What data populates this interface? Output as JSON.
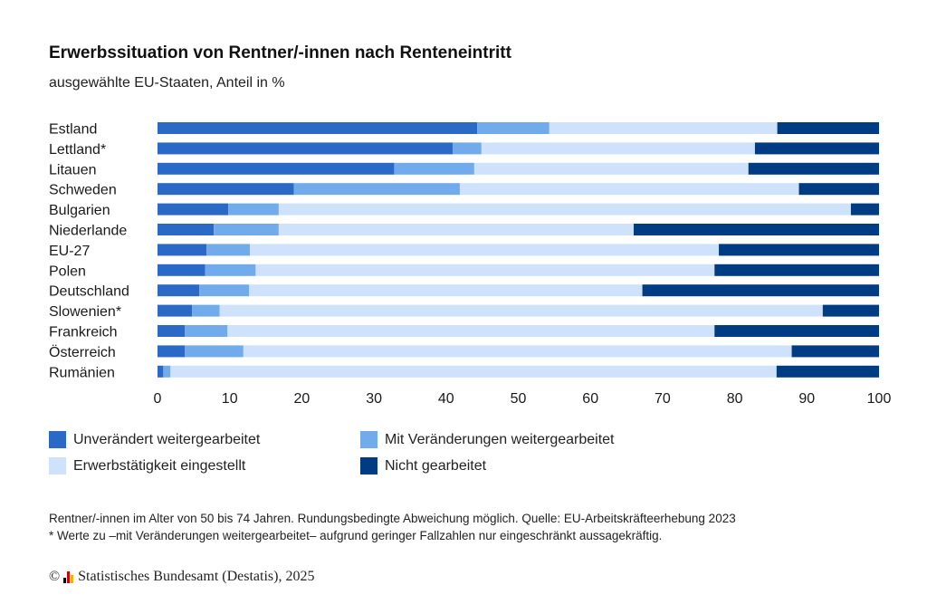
{
  "title": "Erwerbssituation von Rentner/-innen nach Renteneintritt",
  "subtitle": "ausgewählte EU-Staaten, Anteil in %",
  "colors": {
    "unveraendert": "#2a6ac6",
    "veraenderungen": "#72abeb",
    "eingestellt": "#cfe2fb",
    "nicht": "#003c84"
  },
  "chart_data": {
    "type": "bar",
    "orientation": "horizontal",
    "stacked": true,
    "categories": [
      "Estland",
      "Lettland*",
      "Litauen",
      "Schweden",
      "Bulgarien",
      "Niederlande",
      "EU-27",
      "Polen",
      "Deutschland",
      "Slowenien*",
      "Frankreich",
      "Österreich",
      "Rumänien"
    ],
    "series": [
      {
        "name": "Unverändert weitergearbeitet",
        "color": "#2a6ac6",
        "values": [
          44.3,
          40.9,
          32.8,
          18.9,
          9.8,
          7.8,
          6.8,
          6.6,
          5.8,
          4.8,
          3.8,
          3.8,
          0.8
        ]
      },
      {
        "name": "Mit Veränderungen weitergearbeitet",
        "color": "#72abeb",
        "values": [
          10.0,
          4.0,
          11.1,
          23.0,
          7.0,
          9.0,
          6.0,
          7.0,
          6.9,
          3.8,
          5.9,
          8.1,
          1.0
        ]
      },
      {
        "name": "Erwerbstätigkeit eingestellt",
        "color": "#cfe2fb",
        "values": [
          31.6,
          37.9,
          38.0,
          47.0,
          79.3,
          49.2,
          65.0,
          63.6,
          54.5,
          83.6,
          67.5,
          76.0,
          84.0
        ]
      },
      {
        "name": "Nicht gearbeitet",
        "color": "#003c84",
        "values": [
          14.1,
          17.2,
          18.1,
          11.1,
          3.9,
          34.0,
          22.2,
          22.8,
          32.8,
          7.8,
          22.8,
          12.1,
          14.2
        ]
      }
    ],
    "xlim": [
      0,
      100
    ],
    "xticks": [
      0,
      10,
      20,
      30,
      40,
      50,
      60,
      70,
      80,
      90,
      100
    ],
    "grid": false,
    "legend_position": "bottom"
  },
  "notes": {
    "line1": "Rentner/-innen im Alter von 50 bis 74 Jahren. Rundungsbedingte Abweichung möglich. Quelle: EU-Arbeitskräfteerhebung 2023",
    "line2": "* Werte zu –mit Veränderungen weitergearbeitet– aufgrund geringer Fallzahlen nur eingeschränkt aussagekräftig."
  },
  "footer": {
    "copyright_symbol": "©",
    "text": "Statistisches Bundesamt (Destatis), 2025",
    "logo_colors": [
      "#000000",
      "#d40000",
      "#f0b400"
    ]
  }
}
